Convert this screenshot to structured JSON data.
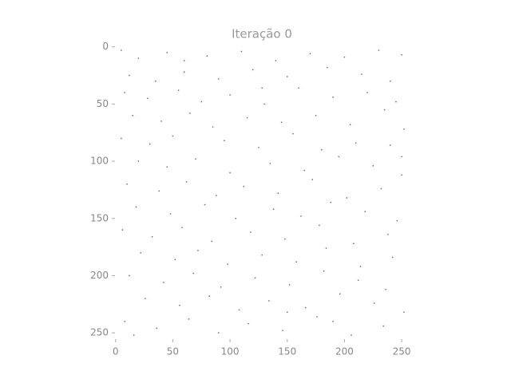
{
  "chart_data": {
    "type": "image-cells",
    "title": "Iteração 0",
    "color": "#2e8b2e",
    "xlim": [
      -0.5,
      255.5
    ],
    "ylim": [
      255.5,
      -0.5
    ],
    "xticks": [
      0,
      50,
      100,
      150,
      200,
      250
    ],
    "yticks": [
      0,
      50,
      100,
      150,
      200,
      250
    ],
    "x": [
      5,
      20,
      45,
      80,
      110,
      140,
      170,
      200,
      230,
      250,
      12,
      35,
      60,
      90,
      120,
      150,
      185,
      215,
      240,
      8,
      28,
      55,
      75,
      100,
      130,
      160,
      190,
      220,
      245,
      15,
      40,
      65,
      85,
      115,
      145,
      175,
      205,
      235,
      252,
      5,
      30,
      50,
      95,
      125,
      155,
      180,
      210,
      240,
      20,
      45,
      70,
      100,
      135,
      165,
      195,
      225,
      250,
      10,
      38,
      62,
      88,
      112,
      142,
      172,
      202,
      232,
      18,
      48,
      78,
      105,
      138,
      162,
      188,
      218,
      246,
      6,
      32,
      58,
      84,
      118,
      148,
      178,
      208,
      238,
      22,
      52,
      72,
      98,
      128,
      158,
      184,
      214,
      242,
      12,
      42,
      68,
      92,
      122,
      152,
      182,
      212,
      236,
      26,
      56,
      82,
      108,
      134,
      166,
      196,
      226,
      252,
      8,
      36,
      64,
      90,
      116,
      146,
      176,
      206,
      234,
      16,
      150,
      190,
      60,
      128,
      250
    ],
    "y": [
      3,
      10,
      5,
      8,
      4,
      12,
      6,
      9,
      3,
      7,
      25,
      30,
      22,
      28,
      20,
      26,
      18,
      24,
      30,
      40,
      45,
      38,
      48,
      42,
      50,
      36,
      44,
      40,
      48,
      60,
      65,
      58,
      70,
      62,
      66,
      60,
      68,
      55,
      72,
      80,
      85,
      78,
      82,
      88,
      76,
      90,
      84,
      86,
      100,
      105,
      98,
      110,
      102,
      108,
      96,
      104,
      112,
      120,
      126,
      118,
      130,
      122,
      128,
      116,
      132,
      124,
      140,
      146,
      138,
      150,
      142,
      148,
      136,
      144,
      152,
      160,
      166,
      158,
      170,
      162,
      168,
      156,
      172,
      164,
      180,
      186,
      178,
      190,
      182,
      188,
      176,
      192,
      184,
      200,
      206,
      198,
      210,
      202,
      208,
      196,
      204,
      212,
      220,
      226,
      218,
      230,
      222,
      228,
      216,
      224,
      232,
      240,
      246,
      238,
      250,
      242,
      248,
      236,
      252,
      244,
      252,
      232,
      240,
      12,
      36,
      96
    ]
  }
}
